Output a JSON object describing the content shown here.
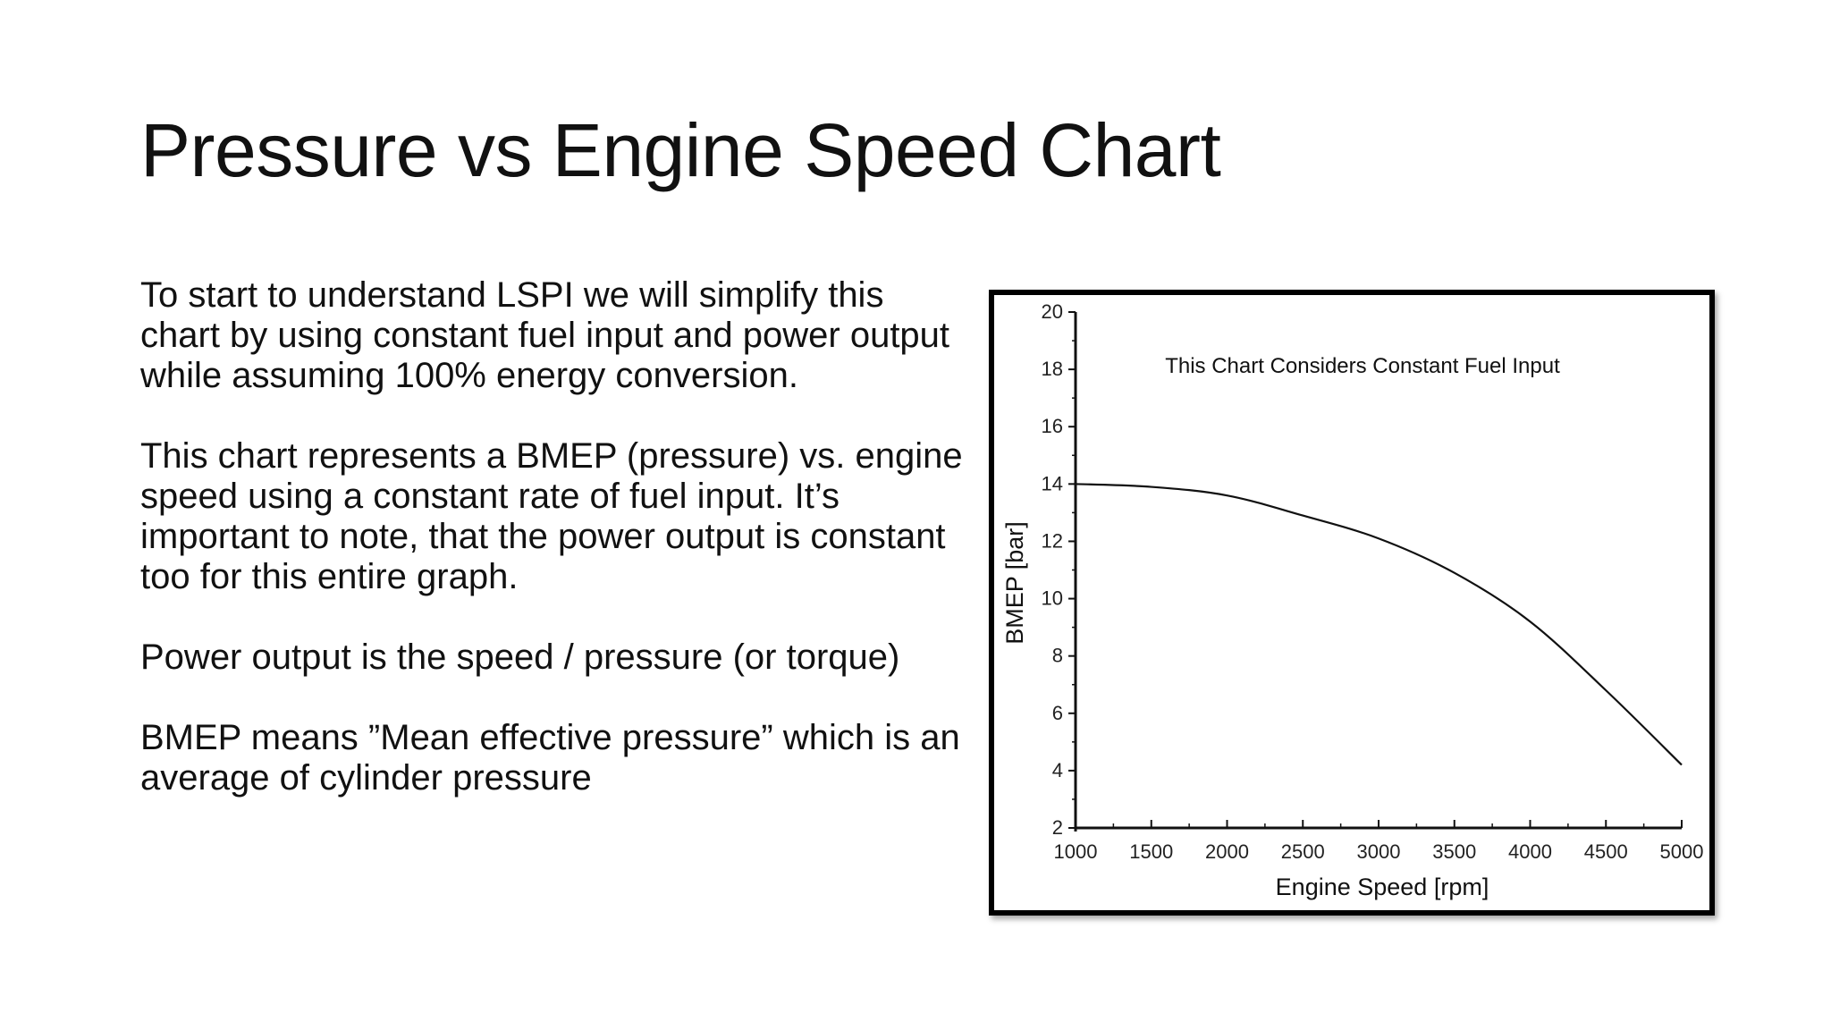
{
  "slide": {
    "title": "Pressure vs Engine Speed Chart",
    "paragraphs": [
      "To start to understand LSPI we will simplify this chart by using constant fuel input and power output while assuming 100% energy conversion.",
      "This chart represents a BMEP (pressure) vs. engine speed using a constant rate of fuel input. It’s important to note, that the power output is constant too for this entire graph.",
      "Power output is the speed / pressure (or torque)",
      "BMEP means ”Mean effective pressure” which is an average of cylinder pressure"
    ]
  },
  "chart_data": {
    "type": "line",
    "title": "",
    "annotation": "This Chart Considers Constant Fuel Input",
    "xlabel": "Engine Speed [rpm]",
    "ylabel": "BMEP [bar]",
    "xlim": [
      1000,
      5000
    ],
    "ylim": [
      2,
      20
    ],
    "xticks": [
      1000,
      1500,
      2000,
      2500,
      3000,
      3500,
      4000,
      4500,
      5000
    ],
    "yticks": [
      2,
      4,
      6,
      8,
      10,
      12,
      14,
      16,
      18,
      20
    ],
    "grid": false,
    "series": [
      {
        "x": [
          1000,
          1500,
          2000,
          2500,
          3000,
          3500,
          4000,
          4500,
          5000
        ],
        "y": [
          14.0,
          13.9,
          13.6,
          12.9,
          12.1,
          10.9,
          9.2,
          6.8,
          4.2
        ],
        "color": "#111111"
      }
    ]
  }
}
